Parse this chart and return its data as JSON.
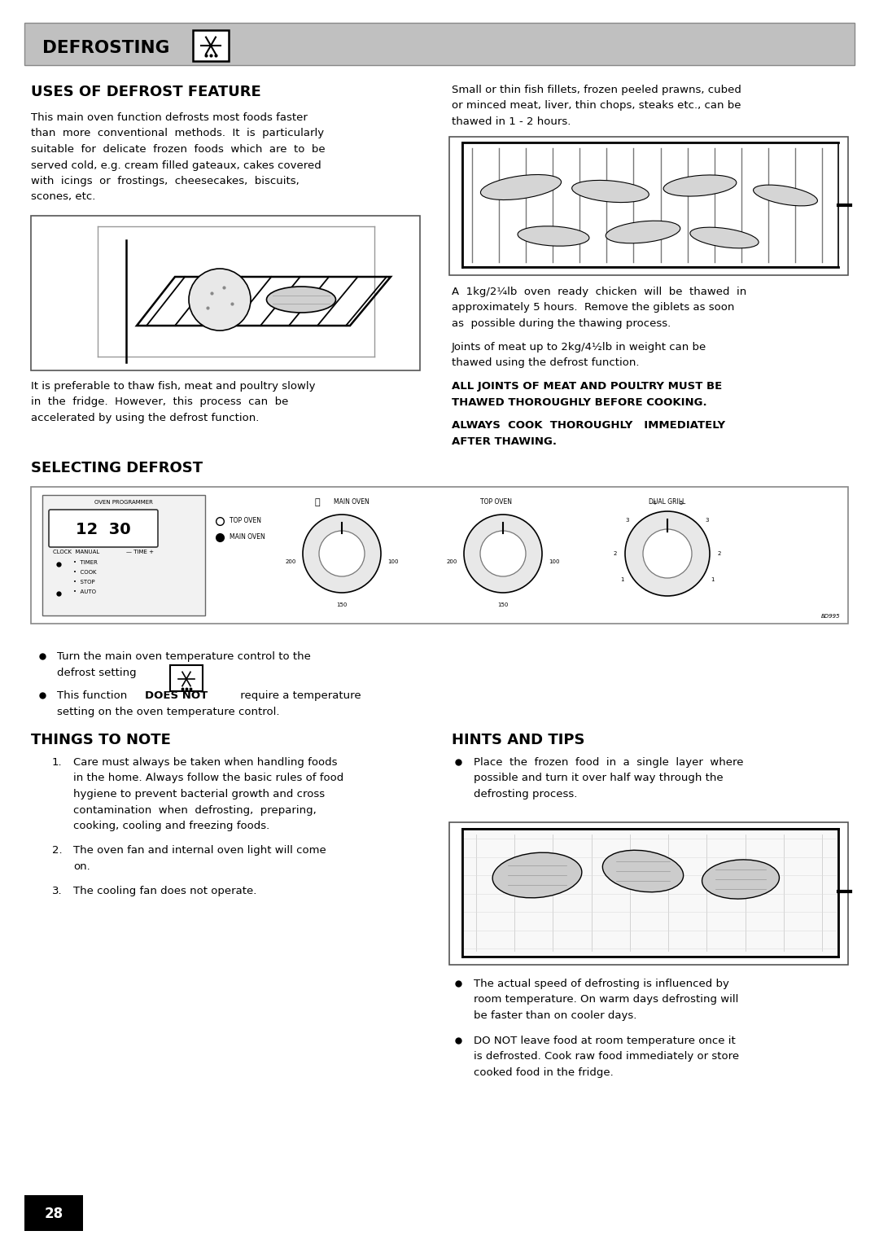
{
  "bg_color": "#ffffff",
  "header_bg": "#c0c0c0",
  "header_text": "DEFROSTING",
  "page_number": "28",
  "section1_title": "USES OF DEFROST FEATURE",
  "body1_line1": "This main oven function defrosts most foods faster",
  "body1_line2": "than  more  conventional  methods.  It  is  particularly",
  "body1_line3": "suitable  for  delicate  frozen  foods  which  are  to  be",
  "body1_line4": "served cold, e.g. cream filled gateaux, cakes covered",
  "body1_line5": "with  icings  or  frostings,  cheesecakes,  biscuits,",
  "body1_line6": "scones, etc.",
  "body2_line1": "It is preferable to thaw fish, meat and poultry slowly",
  "body2_line2": "in  the  fridge.  However,  this  process  can  be",
  "body2_line3": "accelerated by using the defrost function.",
  "right_text1_line1": "Small or thin fish fillets, frozen peeled prawns, cubed",
  "right_text1_line2": "or minced meat, liver, thin chops, steaks etc., can be",
  "right_text1_line3": "thawed in 1 - 2 hours.",
  "right_text2_line1": "A  1kg/2¼lb  oven  ready  chicken  will  be  thawed  in",
  "right_text2_line2": "approximately 5 hours.  Remove the giblets as soon",
  "right_text2_line3": "as  possible during the thawing process.",
  "right_text3_line1": "Joints of meat up to 2kg/4½lb in weight can be",
  "right_text3_line2": "thawed using the defrost function.",
  "bold1_line1": "ALL JOINTS OF MEAT AND POULTRY MUST BE",
  "bold1_line2": "THAWED THOROUGHLY BEFORE COOKING.",
  "bold2_line1": "ALWAYS  COOK  THOROUGHLY   IMMEDIATELY",
  "bold2_line2": "AFTER THAWING.",
  "section2_title": "SELECTING DEFROST",
  "bullet1_line1": "Turn the main oven temperature control to the",
  "bullet1_line2": "defrost setting",
  "bullet2_pre": "This function ",
  "bullet2_bold": "DOES NOT",
  "bullet2_post_line1": " require a temperature",
  "bullet2_post_line2": "setting on the oven temperature control.",
  "section3_title": "THINGS TO NOTE",
  "note1_line1": "Care must always be taken when handling foods",
  "note1_line2": "in the home. Always follow the basic rules of food",
  "note1_line3": "hygiene to prevent bacterial growth and cross",
  "note1_line4": "contamination  when  defrosting,  preparing,",
  "note1_line5": "cooking, cooling and freezing foods.",
  "note2_line1": "The oven fan and internal oven light will come",
  "note2_line2": "on.",
  "note3": "The cooling fan does not operate.",
  "hints_title": "HINTS AND TIPS",
  "hint1_line1": "Place  the  frozen  food  in  a  single  layer  where",
  "hint1_line2": "possible and turn it over half way through the",
  "hint1_line3": "defrosting process.",
  "hint2_line1": "The actual speed of defrosting is influenced by",
  "hint2_line2": "room temperature. On warm days defrosting will",
  "hint2_line3": "be faster than on cooler days.",
  "hint3_line1": "DO NOT leave food at room temperature once it",
  "hint3_line2": "is defrosted. Cook raw food immediately or store",
  "hint3_line3": "cooked food in the fridge.",
  "prog_label": "OVEN PROGRAMMER",
  "display_text": "12  30",
  "clock_label": "CLOCK  MANUAL",
  "time_label": "— TIME +",
  "timer_label": "•  TIMER",
  "cook_label": "•  COOK",
  "stop_label": "•  STOP",
  "auto_label": "•  AUTO",
  "top_oven_label": "TOP OVEN",
  "main_oven_label": "MAIN OVEN",
  "main_oven_knob_label": "MAIN OVEN",
  "top_oven_knob_label": "TOP OVEN",
  "dual_grill_label": "DUAL GRILL",
  "bd_label": "BD995"
}
